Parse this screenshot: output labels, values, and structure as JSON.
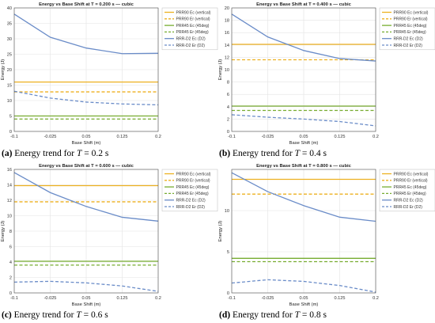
{
  "panels": [
    {
      "label": "(a)",
      "caption_text": "Energy trend for",
      "caption_var": "T",
      "caption_value": "= 0.2 s"
    },
    {
      "label": "(b)",
      "caption_text": "Energy trend for",
      "caption_var": "T",
      "caption_value": "= 0.4 s"
    },
    {
      "label": "(c)",
      "caption_text": "Energy trend for",
      "caption_var": "T",
      "caption_value": "= 0.6 s"
    },
    {
      "label": "(d)",
      "caption_text": "Energy trend for",
      "caption_var": "T",
      "caption_value": "= 0.8 s"
    }
  ],
  "colors": {
    "prr90": "#EDB120",
    "prr45": "#77AC30",
    "rrr": "#6A8CC8"
  },
  "chart_data": [
    {
      "type": "line",
      "title": "Energy vs Base Shift at T = 0.200 s — cubic",
      "xlabel": "Base Shift (m)",
      "ylabel": "Energy (J)",
      "xlim": [
        -0.1,
        0.2
      ],
      "ylim": [
        0,
        40
      ],
      "xticks": [
        -0.1,
        -0.025,
        0.05,
        0.125,
        0.2
      ],
      "xticklabels": [
        "-0.1",
        "-0.025",
        "0.05",
        "0.125",
        "0.2"
      ],
      "yticks": [
        0,
        5,
        10,
        15,
        20,
        25,
        30,
        35,
        40
      ],
      "grid": true,
      "legend": "top-right",
      "x": [
        -0.1,
        -0.025,
        0.05,
        0.125,
        0.2
      ],
      "series": [
        {
          "name": "PRR90 Ec (vertical)",
          "values": [
            16,
            16,
            16,
            16,
            16
          ],
          "color": "#EDB120",
          "dash": "solid"
        },
        {
          "name": "PRR90 Er (vertical)",
          "values": [
            12.8,
            12.8,
            12.8,
            12.8,
            12.8
          ],
          "color": "#EDB120",
          "dash": "dashed"
        },
        {
          "name": "PRR45 Ec (45deg)",
          "values": [
            5,
            5,
            5,
            5,
            5
          ],
          "color": "#77AC30",
          "dash": "solid"
        },
        {
          "name": "PRR45 Er (45deg)",
          "values": [
            4,
            4,
            4,
            4,
            4
          ],
          "color": "#77AC30",
          "dash": "dashed"
        },
        {
          "name": "RRR-D2 Ec (D2)",
          "values": [
            38,
            30.5,
            27,
            25.2,
            25.3
          ],
          "color": "#6A8CC8",
          "dash": "solid"
        },
        {
          "name": "RRR-D2 Er (D2)",
          "values": [
            13,
            10.8,
            9.5,
            8.9,
            8.6
          ],
          "color": "#6A8CC8",
          "dash": "dashed"
        }
      ]
    },
    {
      "type": "line",
      "title": "Energy vs Base Shift at T = 0.400 s — cubic",
      "xlabel": "Base Shift (m)",
      "ylabel": "Energy (J)",
      "xlim": [
        -0.1,
        0.2
      ],
      "ylim": [
        0,
        20
      ],
      "xticks": [
        -0.1,
        -0.025,
        0.05,
        0.125,
        0.2
      ],
      "xticklabels": [
        "-0.1",
        "-0.025",
        "0.05",
        "0.125",
        "0.2"
      ],
      "yticks": [
        0,
        2,
        4,
        6,
        8,
        10,
        12,
        14,
        16,
        18,
        20
      ],
      "grid": true,
      "legend": "top-right",
      "x": [
        -0.1,
        -0.025,
        0.05,
        0.125,
        0.2
      ],
      "series": [
        {
          "name": "PRR90 Ec (vertical)",
          "values": [
            14.1,
            14.1,
            14.1,
            14.1,
            14.1
          ],
          "color": "#EDB120",
          "dash": "solid"
        },
        {
          "name": "PRR90 Er (vertical)",
          "values": [
            11.6,
            11.6,
            11.6,
            11.6,
            11.6
          ],
          "color": "#EDB120",
          "dash": "dashed"
        },
        {
          "name": "PRR45 Ec (45deg)",
          "values": [
            4.1,
            4.1,
            4.1,
            4.1,
            4.1
          ],
          "color": "#77AC30",
          "dash": "solid"
        },
        {
          "name": "PRR45 Er (45deg)",
          "values": [
            3.4,
            3.4,
            3.4,
            3.4,
            3.4
          ],
          "color": "#77AC30",
          "dash": "dashed"
        },
        {
          "name": "RRR-D2 Ec (D2)",
          "values": [
            19,
            15.3,
            13.1,
            11.8,
            11.4
          ],
          "color": "#6A8CC8",
          "dash": "solid"
        },
        {
          "name": "RRR-D2 Er (D2)",
          "values": [
            2.7,
            2.3,
            2.0,
            1.6,
            0.9
          ],
          "color": "#6A8CC8",
          "dash": "dashed"
        }
      ]
    },
    {
      "type": "line",
      "title": "Energy vs Base Shift at T = 0.600 s — cubic",
      "xlabel": "Base Shift (m)",
      "ylabel": "Energy (J)",
      "xlim": [
        -0.1,
        0.2
      ],
      "ylim": [
        0,
        16
      ],
      "xticks": [
        -0.1,
        -0.025,
        0.05,
        0.125,
        0.2
      ],
      "xticklabels": [
        "-0.1",
        "-0.025",
        "0.05",
        "0.125",
        "0.2"
      ],
      "yticks": [
        0,
        2,
        4,
        6,
        8,
        10,
        12,
        14,
        16
      ],
      "grid": true,
      "legend": "top-right",
      "x": [
        -0.1,
        -0.025,
        0.05,
        0.125,
        0.2
      ],
      "series": [
        {
          "name": "PRR90 Ec (vertical)",
          "values": [
            13.9,
            13.9,
            13.9,
            13.9,
            13.9
          ],
          "color": "#EDB120",
          "dash": "solid"
        },
        {
          "name": "PRR90 Er (vertical)",
          "values": [
            11.8,
            11.8,
            11.8,
            11.8,
            11.8
          ],
          "color": "#EDB120",
          "dash": "dashed"
        },
        {
          "name": "PRR45 Ec (45deg)",
          "values": [
            4.1,
            4.1,
            4.1,
            4.1,
            4.1
          ],
          "color": "#77AC30",
          "dash": "solid"
        },
        {
          "name": "PRR45 Er (45deg)",
          "values": [
            3.6,
            3.6,
            3.6,
            3.6,
            3.6
          ],
          "color": "#77AC30",
          "dash": "dashed"
        },
        {
          "name": "RRR-D2 Ec (D2)",
          "values": [
            15.6,
            13.0,
            11.2,
            9.8,
            9.3
          ],
          "color": "#6A8CC8",
          "dash": "solid"
        },
        {
          "name": "RRR-D2 Er (D2)",
          "values": [
            1.4,
            1.5,
            1.3,
            0.9,
            0.2
          ],
          "color": "#6A8CC8",
          "dash": "dashed"
        }
      ]
    },
    {
      "type": "line",
      "title": "Energy vs Base Shift at T = 0.800 s — cubic",
      "xlabel": "Base Shift (m)",
      "ylabel": "Energy (J)",
      "xlim": [
        -0.1,
        0.2
      ],
      "ylim": [
        0,
        15
      ],
      "xticks": [
        -0.1,
        -0.025,
        0.05,
        0.125,
        0.2
      ],
      "xticklabels": [
        "-0.1",
        "-0.025",
        "0.05",
        "0.125",
        "0.2"
      ],
      "yticks": [
        0,
        5,
        10
      ],
      "grid": true,
      "legend": "top-right",
      "x": [
        -0.1,
        -0.025,
        0.05,
        0.125,
        0.2
      ],
      "series": [
        {
          "name": "PRR90 Ec (vertical)",
          "values": [
            13.8,
            13.8,
            13.8,
            13.8,
            13.8
          ],
          "color": "#EDB120",
          "dash": "solid"
        },
        {
          "name": "PRR90 Er (vertical)",
          "values": [
            12,
            12,
            12,
            12,
            12
          ],
          "color": "#EDB120",
          "dash": "dashed"
        },
        {
          "name": "PRR45 Ec (45deg)",
          "values": [
            4.2,
            4.2,
            4.2,
            4.2,
            4.2
          ],
          "color": "#77AC30",
          "dash": "solid"
        },
        {
          "name": "PRR45 Er (45deg)",
          "values": [
            3.8,
            3.8,
            3.8,
            3.8,
            3.8
          ],
          "color": "#77AC30",
          "dash": "dashed"
        },
        {
          "name": "RRR-D2 Ec (D2)",
          "values": [
            14.6,
            12.3,
            10.6,
            9.2,
            8.7
          ],
          "color": "#6A8CC8",
          "dash": "solid"
        },
        {
          "name": "RRR-D2 Er (D2)",
          "values": [
            1.2,
            1.6,
            1.4,
            0.9,
            0.1
          ],
          "color": "#6A8CC8",
          "dash": "dashed"
        }
      ]
    }
  ]
}
